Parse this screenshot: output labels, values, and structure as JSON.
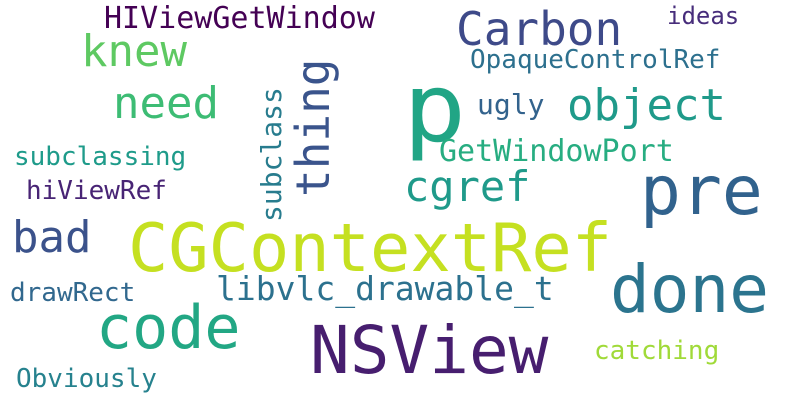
{
  "words": [
    {
      "text": "p",
      "color": "#21a585"
    },
    {
      "text": "CGContextRef",
      "color": "#c5e021"
    },
    {
      "text": "NSView",
      "color": "#471e6f"
    },
    {
      "text": "pre",
      "color": "#31628d"
    },
    {
      "text": "done",
      "color": "#2b748e"
    },
    {
      "text": "code",
      "color": "#22a784"
    },
    {
      "text": "Carbon",
      "color": "#3e4a89"
    },
    {
      "text": "thing",
      "color": "#3a548c"
    },
    {
      "text": "object",
      "color": "#1f9a8a"
    },
    {
      "text": "knew",
      "color": "#5ec962"
    },
    {
      "text": "need",
      "color": "#3dbc74"
    },
    {
      "text": "cgref",
      "color": "#1f9a8a"
    },
    {
      "text": "bad",
      "color": "#3b528b"
    },
    {
      "text": "HIViewGetWindow",
      "color": "#440154"
    },
    {
      "text": "libvlc_drawable_t",
      "color": "#2c718e"
    },
    {
      "text": "GetWindowPort",
      "color": "#27ad81"
    },
    {
      "text": "OpaqueControlRef",
      "color": "#2d708e"
    },
    {
      "text": "subclass",
      "color": "#287c8e"
    },
    {
      "text": "ugly",
      "color": "#33638d"
    },
    {
      "text": "subclassing",
      "color": "#1e9b8a"
    },
    {
      "text": "hiViewRef",
      "color": "#482475"
    },
    {
      "text": "drawRect",
      "color": "#31688e"
    },
    {
      "text": "catching",
      "color": "#a0da39"
    },
    {
      "text": "Obviously",
      "color": "#26828e"
    },
    {
      "text": "ideas",
      "color": "#472d7b"
    }
  ]
}
